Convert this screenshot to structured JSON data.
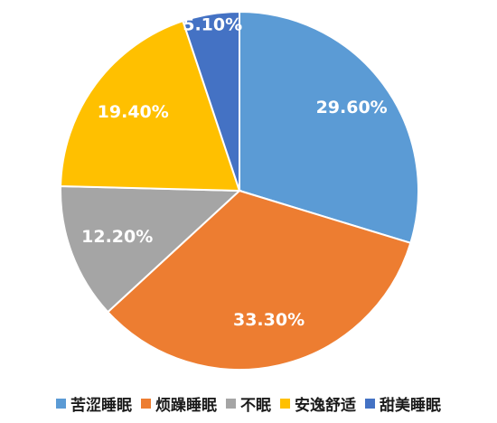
{
  "chart_data": {
    "type": "pie",
    "title": "",
    "slices": [
      {
        "label": "苦涩睡眠",
        "value": 29.6,
        "display": "29.60%",
        "color": "#5b9bd5"
      },
      {
        "label": "烦躁睡眠",
        "value": 33.3,
        "display": "33.30%",
        "color": "#ed7d31"
      },
      {
        "label": "不眠",
        "value": 12.2,
        "display": "12.20%",
        "color": "#a5a5a5"
      },
      {
        "label": "安逸舒适",
        "value": 19.4,
        "display": "19.40%",
        "color": "#ffc000"
      },
      {
        "label": "甜美睡眠",
        "value": 5.1,
        "display": "5.10%",
        "color": "#4472c4"
      }
    ],
    "start": "12 o'clock",
    "direction": "clockwise",
    "legend_position": "bottom"
  }
}
